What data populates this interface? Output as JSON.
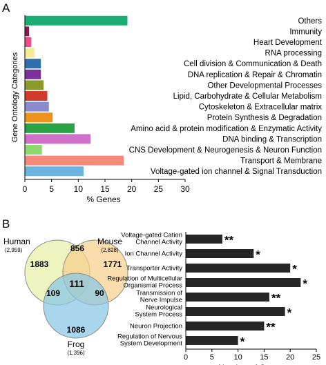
{
  "panel_labels": {
    "a": "A",
    "b": "B"
  },
  "chart_data": [
    {
      "type": "bar",
      "orientation": "horizontal",
      "ylabel": "Gene Ontology Categories",
      "xlabel": "% Genes",
      "xlim": [
        0,
        30
      ],
      "xticks": [
        "0",
        "5",
        "10",
        "15",
        "20",
        "25",
        "30"
      ],
      "categories": [
        "Others",
        "Immunity",
        "Heart Development",
        "RNA processing",
        "Cell division & Communication & Death",
        "DNA replication & Repair & Chromatin",
        "Other Developmental Processes",
        "Lipid, Carbohydrate & Cellular Metabolism",
        "Cytoskeleton & Extracellular matrix",
        "Protein Synthesis & Degradation",
        "Amino acid & protein modification & Enzymatic Activity",
        "DNA binding & Transcription",
        "CNS Development & Neurogenesis & Neuron Function",
        "Transport & Membrane",
        "Voltage-gated ion channel & Signal Transduction"
      ],
      "values": [
        19.2,
        0.8,
        1.2,
        1.8,
        3.0,
        3.0,
        3.5,
        4.2,
        4.5,
        5.2,
        9.3,
        12.3,
        3.2,
        18.5,
        11.0
      ],
      "colors": [
        "#1aad73",
        "#8a1a4a",
        "#e84d8a",
        "#f3eb96",
        "#2e6fae",
        "#7b2f9a",
        "#8a9a2a",
        "#d23a2c",
        "#8a8acc",
        "#f09220",
        "#2aa344",
        "#cf70c8",
        "#8ed870",
        "#f58a7c",
        "#6cb4e0"
      ]
    },
    {
      "type": "venn",
      "sets": [
        {
          "name": "Human",
          "count": "(2,959)",
          "color": "#e6f0a6"
        },
        {
          "name": "Mouse",
          "count": "(2,828)",
          "color": "#f7d08c"
        },
        {
          "name": "Frog",
          "count": "(1,396)",
          "color": "#86c6e6"
        }
      ],
      "regions": {
        "human_only": "1883",
        "mouse_only": "1771",
        "frog_only": "1086",
        "human_mouse": "856",
        "human_frog": "109",
        "mouse_frog": "90",
        "all_three": "111"
      }
    },
    {
      "type": "bar",
      "orientation": "horizontal",
      "xlabel": "Number of Genes",
      "xlim": [
        0,
        25
      ],
      "xticks": [
        "0",
        "5",
        "10",
        "15",
        "20",
        "25"
      ],
      "bar_color": "#262626",
      "categories": [
        [
          "Voltage-gated Cation",
          "Channel Activity"
        ],
        [
          "Ion Channel Activity"
        ],
        [
          "Transporter Activity"
        ],
        [
          "Regulation of Multicellular",
          "Organismal Process"
        ],
        [
          "Transmission of",
          "Nerve Impulse"
        ],
        [
          "Neurological",
          "System Process"
        ],
        [
          "Neuron Projection"
        ],
        [
          "Regulation of Nervous",
          "System Development"
        ]
      ],
      "values": [
        7,
        13,
        20,
        22,
        16,
        19,
        15,
        10
      ],
      "significance": [
        "**",
        "*",
        "*",
        "*",
        "**",
        "*",
        "**",
        "*"
      ]
    }
  ]
}
